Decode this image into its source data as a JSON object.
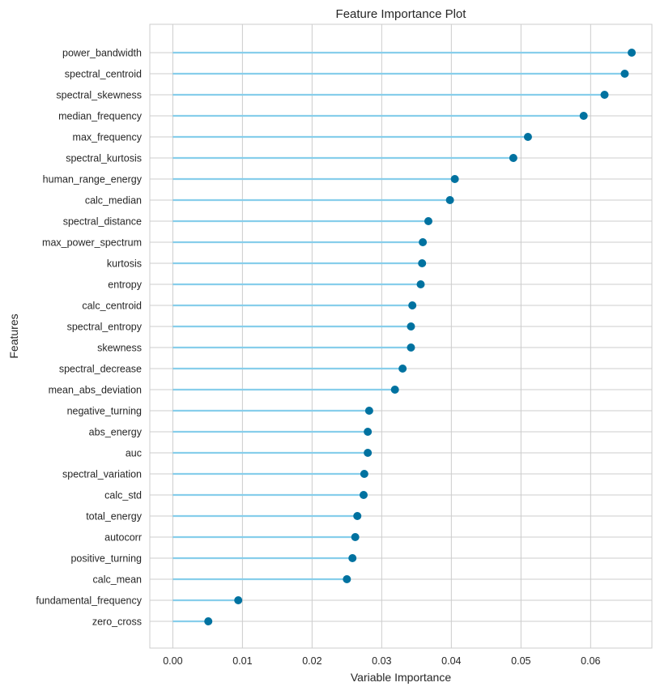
{
  "chart_data": {
    "type": "scatter",
    "title": "Feature Importance Plot",
    "xlabel": "Variable Importance",
    "ylabel": "Features",
    "xlim": [
      -0.0033,
      0.0688
    ],
    "xticks": [
      0.0,
      0.01,
      0.02,
      0.03,
      0.04,
      0.05,
      0.06
    ],
    "xtick_labels": [
      "0.00",
      "0.01",
      "0.02",
      "0.03",
      "0.04",
      "0.05",
      "0.06"
    ],
    "grid": true,
    "colors": {
      "stem": "#87ceeb",
      "marker": "#0072a0",
      "grid": "#cccccc"
    },
    "categories": [
      "power_bandwidth",
      "spectral_centroid",
      "spectral_skewness",
      "median_frequency",
      "max_frequency",
      "spectral_kurtosis",
      "human_range_energy",
      "calc_median",
      "spectral_distance",
      "max_power_spectrum",
      "kurtosis",
      "entropy",
      "calc_centroid",
      "spectral_entropy",
      "skewness",
      "spectral_decrease",
      "mean_abs_deviation",
      "negative_turning",
      "abs_energy",
      "auc",
      "spectral_variation",
      "calc_std",
      "total_energy",
      "autocorr",
      "positive_turning",
      "calc_mean",
      "fundamental_frequency",
      "zero_cross"
    ],
    "values": [
      0.0659,
      0.0649,
      0.062,
      0.059,
      0.051,
      0.0489,
      0.0405,
      0.0398,
      0.0367,
      0.0359,
      0.0358,
      0.0356,
      0.0344,
      0.0342,
      0.0342,
      0.033,
      0.0319,
      0.0282,
      0.028,
      0.028,
      0.0275,
      0.0274,
      0.0265,
      0.0262,
      0.0258,
      0.025,
      0.0094,
      0.0051
    ]
  }
}
